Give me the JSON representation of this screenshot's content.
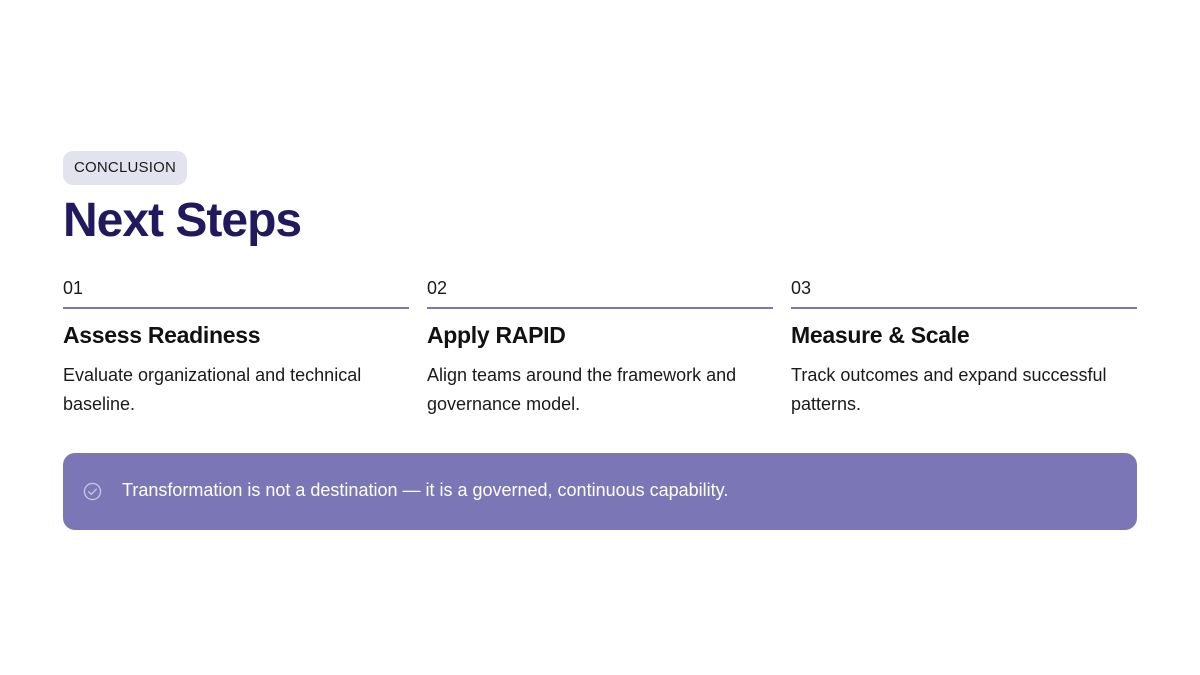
{
  "tag": {
    "label": "CONCLUSION"
  },
  "title": "Next Steps",
  "steps": [
    {
      "number": "01",
      "title": "Assess Readiness",
      "description": "Evaluate organizational and technical baseline."
    },
    {
      "number": "02",
      "title": "Apply RAPID",
      "description": "Align teams around the framework and governance model."
    },
    {
      "number": "03",
      "title": "Measure & Scale",
      "description": "Track outcomes and expand successful patterns."
    }
  ],
  "banner": {
    "icon": "check-circle-icon",
    "text": "Transformation is not a destination — it is a governed, continuous capability."
  },
  "colors": {
    "title": "#21185e",
    "accent": "#7b76b6",
    "tag_background": "#e3e2ef"
  }
}
